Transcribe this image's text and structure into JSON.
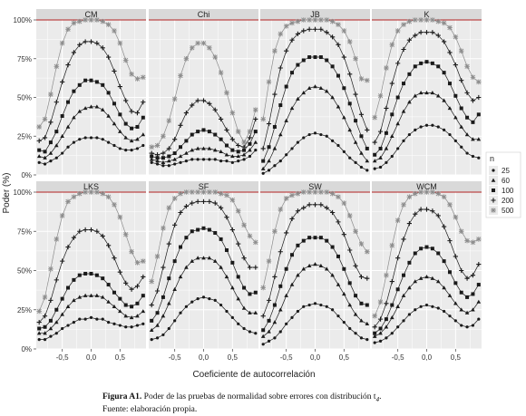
{
  "caption": {
    "label": "Figura A1.",
    "text": "Poder de las pruebas de normalidad sobre errores con distribución t",
    "subscript": "4",
    "suffix": ".",
    "source": "Fuente: elaboración propia."
  },
  "colors": {
    "panel_bg": "#ebebeb",
    "strip_bg": "#d9d9d9",
    "grid": "#ffffff",
    "reference_line": "#b22222",
    "series": {
      "25": "#1a1a1a",
      "60": "#1a1a1a",
      "100": "#1a1a1a",
      "200": "#1a1a1a",
      "500": "#8c8c8c"
    }
  },
  "chart_data": {
    "type": "line",
    "facet_layout": "2x4",
    "xlabel": "Coeficiente de autocorrelación",
    "ylabel": "Poder (%)",
    "xlim": [
      -0.95,
      0.95
    ],
    "ylim": [
      0,
      100
    ],
    "x_ticks": [
      "-0,5",
      "0,0",
      "0,5"
    ],
    "x_tick_values": [
      -0.5,
      0,
      0.5
    ],
    "y_ticks": [
      "0%",
      "25%",
      "50%",
      "75%",
      "100%"
    ],
    "y_tick_values": [
      0,
      25,
      50,
      75,
      100
    ],
    "reference_line": 100,
    "legend": {
      "title": "n",
      "position": "right",
      "entries": [
        "25",
        "60",
        "100",
        "200",
        "500"
      ]
    },
    "x": [
      -0.9,
      -0.8,
      -0.7,
      -0.6,
      -0.5,
      -0.4,
      -0.3,
      -0.2,
      -0.1,
      0.0,
      0.1,
      0.2,
      0.3,
      0.4,
      0.5,
      0.6,
      0.7,
      0.8,
      0.9
    ],
    "panels": [
      {
        "name": "CM",
        "series": [
          {
            "name": "25",
            "values": [
              8,
              7,
              9,
              11,
              14,
              18,
              21,
              23,
              24,
              24,
              24,
              23,
              21,
              19,
              17,
              16,
              16,
              17,
              19
            ]
          },
          {
            "name": "60",
            "values": [
              12,
              11,
              14,
              19,
              25,
              31,
              37,
              41,
              43,
              44,
              44,
              42,
              38,
              33,
              28,
              24,
              22,
              23,
              26
            ]
          },
          {
            "name": "100",
            "values": [
              16,
              15,
              21,
              28,
              38,
              47,
              54,
              58,
              61,
              61,
              60,
              58,
              53,
              46,
              39,
              33,
              30,
              31,
              37
            ]
          },
          {
            "name": "200",
            "values": [
              22,
              24,
              34,
              47,
              60,
              71,
              79,
              84,
              86,
              86,
              85,
              82,
              76,
              67,
              57,
              48,
              41,
              40,
              47
            ]
          },
          {
            "name": "500",
            "values": [
              31,
              36,
              52,
              70,
              85,
              94,
              98,
              99,
              100,
              100,
              100,
              99,
              97,
              93,
              85,
              74,
              65,
              62,
              63
            ]
          }
        ]
      },
      {
        "name": "Chi",
        "series": [
          {
            "name": "25",
            "values": [
              8,
              7,
              6,
              6,
              7,
              8,
              9,
              10,
              10,
              10,
              10,
              10,
              9,
              9,
              8,
              9,
              10,
              12,
              16
            ]
          },
          {
            "name": "60",
            "values": [
              10,
              9,
              8,
              9,
              10,
              12,
              14,
              16,
              17,
              17,
              17,
              16,
              15,
              13,
              12,
              12,
              13,
              16,
              21
            ]
          },
          {
            "name": "100",
            "values": [
              12,
              11,
              11,
              12,
              14,
              18,
              22,
              26,
              28,
              29,
              28,
              26,
              23,
              19,
              16,
              15,
              16,
              20,
              28
            ]
          },
          {
            "name": "200",
            "values": [
              14,
              13,
              14,
              17,
              23,
              32,
              40,
              45,
              48,
              48,
              46,
              42,
              36,
              29,
              23,
              19,
              18,
              24,
              36
            ]
          },
          {
            "name": "500",
            "values": [
              18,
              19,
              25,
              35,
              49,
              64,
              75,
              82,
              85,
              85,
              82,
              76,
              66,
              53,
              40,
              28,
              21,
              28,
              42
            ]
          }
        ]
      },
      {
        "name": "JB",
        "series": [
          {
            "name": "25",
            "values": [
              1,
              3,
              6,
              9,
              13,
              17,
              21,
              24,
              26,
              27,
              26,
              25,
              22,
              19,
              15,
              11,
              8,
              5,
              3
            ]
          },
          {
            "name": "60",
            "values": [
              4,
              9,
              17,
              26,
              35,
              43,
              49,
              53,
              56,
              57,
              56,
              54,
              50,
              44,
              37,
              29,
              21,
              14,
              9
            ]
          },
          {
            "name": "100",
            "values": [
              9,
              18,
              31,
              45,
              57,
              66,
              71,
              74,
              76,
              76,
              76,
              74,
              70,
              64,
              56,
              46,
              35,
              25,
              17
            ]
          },
          {
            "name": "200",
            "values": [
              17,
              33,
              52,
              69,
              80,
              87,
              91,
              93,
              94,
              94,
              94,
              92,
              89,
              84,
              76,
              65,
              52,
              39,
              29
            ]
          },
          {
            "name": "500",
            "values": [
              36,
              60,
              80,
              91,
              96,
              98,
              99,
              100,
              100,
              100,
              100,
              100,
              99,
              97,
              93,
              86,
              75,
              62,
              61
            ]
          }
        ]
      },
      {
        "name": "K",
        "series": [
          {
            "name": "25",
            "values": [
              4,
              5,
              8,
              12,
              17,
              22,
              26,
              29,
              31,
              32,
              32,
              31,
              29,
              26,
              22,
              18,
              14,
              12,
              11
            ]
          },
          {
            "name": "60",
            "values": [
              9,
              11,
              17,
              25,
              33,
              41,
              47,
              51,
              53,
              53,
              53,
              51,
              48,
              43,
              37,
              31,
              26,
              23,
              23
            ]
          },
          {
            "name": "100",
            "values": [
              13,
              17,
              27,
              39,
              50,
              59,
              65,
              70,
              72,
              73,
              72,
              70,
              66,
              59,
              51,
              43,
              37,
              34,
              39
            ]
          },
          {
            "name": "200",
            "values": [
              21,
              28,
              43,
              59,
              72,
              81,
              87,
              90,
              92,
              92,
              92,
              90,
              86,
              79,
              71,
              61,
              53,
              48,
              50
            ]
          },
          {
            "name": "500",
            "values": [
              37,
              51,
              69,
              84,
              93,
              97,
              99,
              100,
              100,
              100,
              100,
              99,
              98,
              95,
              89,
              80,
              70,
              63,
              60
            ]
          }
        ]
      },
      {
        "name": "LKS",
        "series": [
          {
            "name": "25",
            "values": [
              6,
              6,
              8,
              10,
              13,
              15,
              17,
              19,
              19,
              20,
              19,
              19,
              17,
              16,
              15,
              14,
              14,
              15,
              16
            ]
          },
          {
            "name": "60",
            "values": [
              10,
              10,
              13,
              17,
              22,
              27,
              31,
              33,
              34,
              34,
              34,
              33,
              30,
              27,
              24,
              21,
              20,
              21,
              24
            ]
          },
          {
            "name": "100",
            "values": [
              13,
              14,
              18,
              25,
              32,
              39,
              44,
              47,
              48,
              48,
              47,
              45,
              41,
              36,
              32,
              28,
              27,
              29,
              34
            ]
          },
          {
            "name": "200",
            "values": [
              17,
              21,
              31,
              44,
              56,
              65,
              71,
              75,
              76,
              76,
              75,
              72,
              66,
              58,
              49,
              42,
              38,
              40,
              46
            ]
          },
          {
            "name": "500",
            "values": [
              24,
              33,
              51,
              70,
              85,
              94,
              97,
              99,
              100,
              100,
              100,
              99,
              97,
              92,
              84,
              73,
              62,
              55,
              56
            ]
          }
        ]
      },
      {
        "name": "SF",
        "series": [
          {
            "name": "25",
            "values": [
              6,
              7,
              9,
              13,
              18,
              23,
              27,
              30,
              32,
              33,
              32,
              31,
              28,
              24,
              20,
              16,
              13,
              11,
              10
            ]
          },
          {
            "name": "60",
            "values": [
              12,
              15,
              21,
              29,
              38,
              46,
              52,
              56,
              58,
              58,
              58,
              56,
              52,
              46,
              39,
              32,
              26,
              23,
              23
            ]
          },
          {
            "name": "100",
            "values": [
              18,
              23,
              33,
              45,
              56,
              65,
              71,
              75,
              76,
              77,
              76,
              74,
              70,
              63,
              55,
              46,
              39,
              35,
              36
            ]
          },
          {
            "name": "200",
            "values": [
              28,
              37,
              52,
              67,
              79,
              87,
              91,
              93,
              94,
              94,
              94,
              93,
              90,
              84,
              76,
              67,
              58,
              52,
              52
            ]
          },
          {
            "name": "500",
            "values": [
              43,
              59,
              77,
              90,
              96,
              99,
              100,
              100,
              100,
              100,
              100,
              100,
              99,
              98,
              95,
              88,
              79,
              72,
              68
            ]
          }
        ]
      },
      {
        "name": "SW",
        "series": [
          {
            "name": "25",
            "values": [
              3,
              5,
              7,
              11,
              16,
              20,
              24,
              27,
              28,
              29,
              28,
              27,
              25,
              21,
              17,
              13,
              10,
              7,
              6
            ]
          },
          {
            "name": "60",
            "values": [
              8,
              11,
              17,
              25,
              34,
              41,
              47,
              51,
              53,
              54,
              53,
              51,
              47,
              41,
              35,
              28,
              22,
              18,
              16
            ]
          },
          {
            "name": "100",
            "values": [
              12,
              18,
              28,
              40,
              51,
              60,
              66,
              69,
              71,
              71,
              71,
              69,
              65,
              59,
              51,
              42,
              34,
              29,
              28
            ]
          },
          {
            "name": "200",
            "values": [
              21,
              31,
              46,
              62,
              74,
              83,
              88,
              90,
              92,
              92,
              92,
              90,
              87,
              81,
              73,
              63,
              53,
              46,
              45
            ]
          },
          {
            "name": "500",
            "values": [
              39,
              56,
              75,
              89,
              96,
              98,
              99,
              100,
              100,
              100,
              100,
              100,
              99,
              97,
              93,
              85,
              75,
              67,
              62
            ]
          }
        ]
      },
      {
        "name": "WCM",
        "series": [
          {
            "name": "25",
            "values": [
              4,
              5,
              7,
              10,
              14,
              18,
              22,
              25,
              27,
              28,
              27,
              26,
              24,
              21,
              18,
              15,
              14,
              15,
              19
            ]
          },
          {
            "name": "60",
            "values": [
              8,
              10,
              14,
              20,
              27,
              34,
              39,
              43,
              45,
              46,
              45,
              43,
              39,
              34,
              29,
              25,
              23,
              25,
              30
            ]
          },
          {
            "name": "100",
            "values": [
              10,
              13,
              19,
              28,
              38,
              47,
              55,
              61,
              64,
              65,
              64,
              61,
              56,
              49,
              42,
              36,
              33,
              35,
              41
            ]
          },
          {
            "name": "200",
            "values": [
              14,
              19,
              29,
              43,
              58,
              70,
              80,
              86,
              89,
              89,
              88,
              85,
              78,
              69,
              59,
              50,
              45,
              47,
              54
            ]
          },
          {
            "name": "500",
            "values": [
              21,
              30,
              47,
              66,
              82,
              92,
              97,
              99,
              100,
              100,
              100,
              99,
              97,
              92,
              84,
              75,
              69,
              68,
              70
            ]
          }
        ]
      }
    ]
  }
}
